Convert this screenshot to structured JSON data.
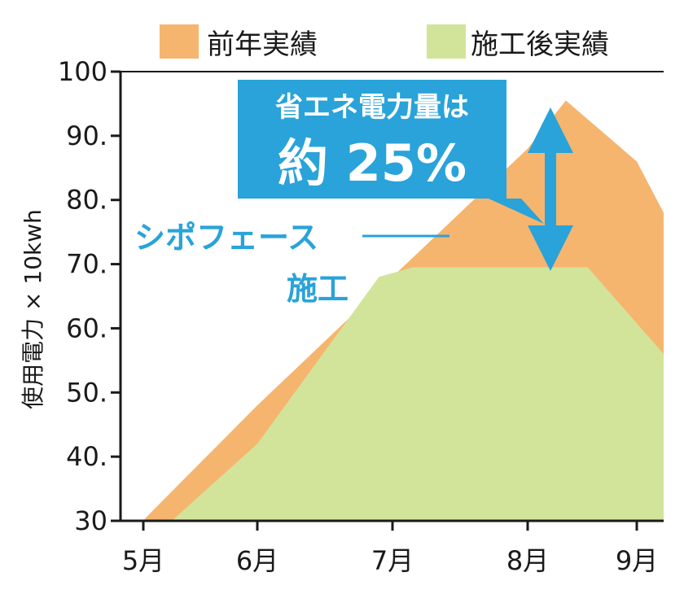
{
  "chart_data": {
    "type": "area",
    "categories": [
      "5月",
      "6月",
      "7月",
      "8月",
      "9月"
    ],
    "ylabel": "使用電力 × 10kwh",
    "ylim": [
      30,
      100
    ],
    "yticks": [
      "100",
      "90.",
      "80.",
      "70.",
      "60.",
      "50.",
      "40.",
      "30"
    ],
    "grid": false,
    "legend_position": "top",
    "series": [
      {
        "name": "前年実績",
        "color": "#f5b56f",
        "points": [
          [
            0.0,
            30
          ],
          [
            0.05,
            31
          ],
          [
            1.0,
            48
          ],
          [
            2.0,
            68
          ],
          [
            3.0,
            88
          ],
          [
            3.35,
            95.5
          ],
          [
            4.0,
            86
          ],
          [
            4.55,
            78
          ],
          [
            4.55,
            30
          ]
        ]
      },
      {
        "name": "施工後実績",
        "color": "#d2e49a",
        "points": [
          [
            0.25,
            30
          ],
          [
            1.0,
            42
          ],
          [
            1.9,
            68
          ],
          [
            2.15,
            69.5
          ],
          [
            3.0,
            69.5
          ],
          [
            3.55,
            69.5
          ],
          [
            4.55,
            56
          ],
          [
            4.55,
            30
          ]
        ]
      }
    ],
    "annotations": {
      "callout_line1": "省エネ電力量は",
      "callout_line2": "約 25%",
      "callout_color": "#29a3d9",
      "label_line1": "シポフェース",
      "label_line2": "施工"
    }
  }
}
